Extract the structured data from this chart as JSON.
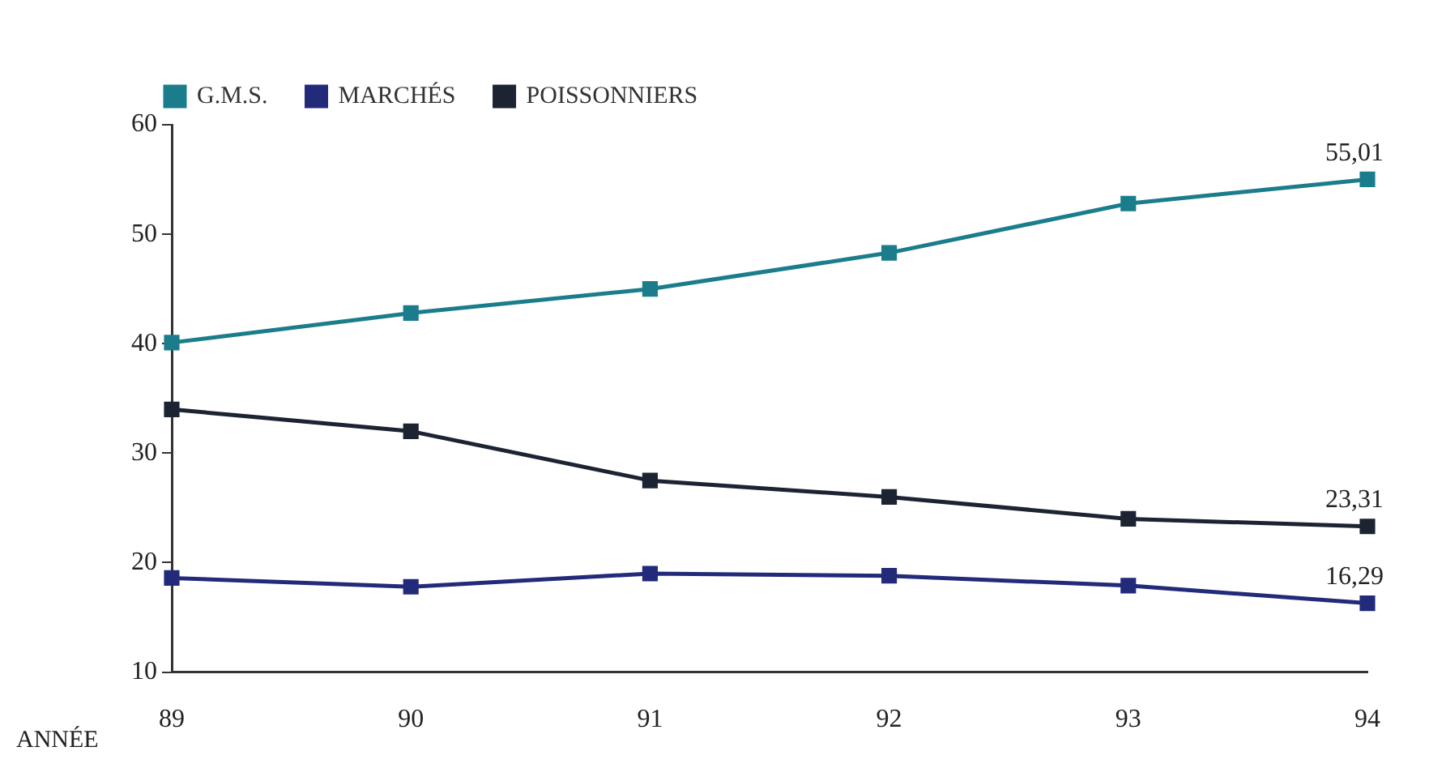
{
  "chart_data": {
    "type": "line",
    "xlabel": "ANNÉE",
    "categories": [
      "89",
      "90",
      "91",
      "92",
      "93",
      "94"
    ],
    "series": [
      {
        "name": "G.M.S.",
        "color": "#1b7d8c",
        "values": [
          40.1,
          42.8,
          45,
          48.3,
          52.8,
          55.01
        ],
        "value_labels": [
          null,
          null,
          null,
          null,
          null,
          "55,01"
        ]
      },
      {
        "name": "MARCHÉS",
        "color": "#222a7a",
        "values": [
          18.6,
          17.8,
          19,
          18.8,
          17.9,
          16.29
        ],
        "value_labels": [
          null,
          null,
          null,
          null,
          null,
          "16,29"
        ]
      },
      {
        "name": "POISSONNIERS",
        "color": "#1c2333",
        "values": [
          34,
          32,
          27.5,
          26,
          24,
          23.31
        ],
        "value_labels": [
          null,
          null,
          null,
          null,
          null,
          "23,31"
        ]
      }
    ],
    "ylim": [
      10,
      60
    ],
    "yticks": [
      10,
      20,
      30,
      40,
      50,
      60
    ],
    "grid": false,
    "legend": "top left",
    "marker": "square",
    "line_style": "solid"
  }
}
